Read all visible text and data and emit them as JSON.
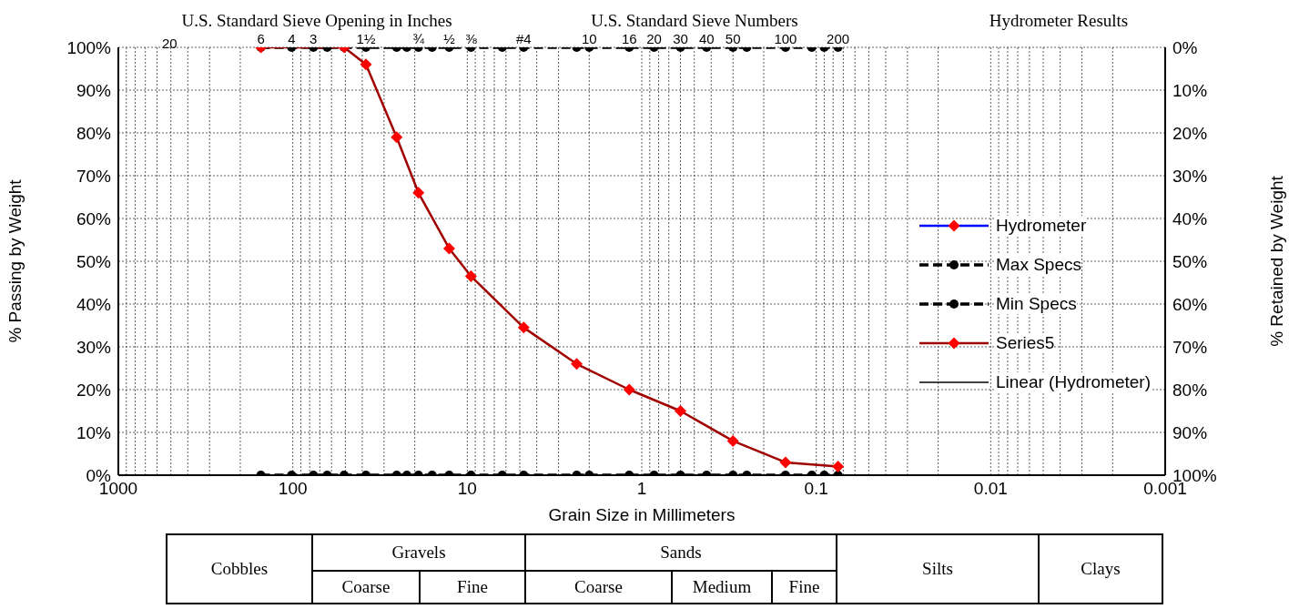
{
  "chart_data": {
    "type": "line",
    "xlabel": "Grain Size in Millimeters",
    "ylabel": "% Passing by Weight",
    "y2label": "% Retained by Weight",
    "log": "x",
    "grid": true,
    "legend": "right",
    "xlim": [
      1000,
      0.001
    ],
    "xticks": [
      1000,
      {
        "value": 900,
        "label": null
      },
      {
        "value": 800,
        "label": null
      },
      {
        "value": 700,
        "label": null
      },
      {
        "value": 600,
        "label": null
      },
      {
        "value": 500,
        "label": null
      },
      {
        "value": 400,
        "label": null
      },
      {
        "value": 300,
        "label": null
      },
      {
        "value": 200,
        "label": null
      },
      100,
      {
        "value": 90,
        "label": null
      },
      {
        "value": 80,
        "label": null
      },
      {
        "value": 70,
        "label": null
      },
      {
        "value": 60,
        "label": null
      },
      {
        "value": 50,
        "label": null
      },
      {
        "value": 40,
        "label": null
      },
      {
        "value": 30,
        "label": null
      },
      {
        "value": 20,
        "label": null
      },
      10,
      {
        "value": 9,
        "label": null
      },
      {
        "value": 8,
        "label": null
      },
      {
        "value": 7,
        "label": null
      },
      {
        "value": 6,
        "label": null
      },
      {
        "value": 5,
        "label": null
      },
      {
        "value": 4,
        "label": null
      },
      {
        "value": 3,
        "label": null
      },
      {
        "value": 2,
        "label": null
      },
      1,
      {
        "value": 0.9,
        "label": null
      },
      {
        "value": 0.8,
        "label": null
      },
      {
        "value": 0.7,
        "label": null
      },
      {
        "value": 0.6,
        "label": null
      },
      {
        "value": 0.5,
        "label": null
      },
      {
        "value": 0.4,
        "label": null
      },
      {
        "value": 0.3,
        "label": null
      },
      {
        "value": 0.2,
        "label": null
      },
      0.1,
      {
        "value": 0.09,
        "label": null
      },
      {
        "value": 0.08,
        "label": null
      },
      {
        "value": 0.07,
        "label": null
      },
      {
        "value": 0.06,
        "label": null
      },
      {
        "value": 0.05,
        "label": null
      },
      {
        "value": 0.04,
        "label": null
      },
      {
        "value": 0.03,
        "label": null
      },
      {
        "value": 0.02,
        "label": null
      },
      0.01,
      {
        "value": 0.009,
        "label": null
      },
      {
        "value": 0.008,
        "label": null
      },
      {
        "value": 0.007,
        "label": null
      },
      {
        "value": 0.006,
        "label": null
      },
      {
        "value": 0.005,
        "label": null
      },
      {
        "value": 0.004,
        "label": null
      },
      {
        "value": 0.003,
        "label": null
      },
      {
        "value": 0.002,
        "label": null
      },
      0.001
    ],
    "annotations": [
      "U.S. Standard Sieve Opening in Inches",
      "U.S. Standard Sieve Numbers",
      "Hydrometer Results",
      "Cobbles",
      "Gravels",
      "Coarse",
      "Fine",
      "Sands",
      "Coarse",
      "Medium",
      "Fine",
      "Silts",
      "Clays",
      "20",
      {
        "text": "6",
        "x": 152.4
      },
      {
        "text": "4",
        "x": 101.6
      },
      {
        "text": "3",
        "x": 76.2
      },
      {
        "text": "1½",
        "x": 38.1
      },
      {
        "text": "¾",
        "x": 19.05
      },
      {
        "text": "½",
        "x": 12.7
      },
      {
        "text": "⅜",
        "x": 9.525
      },
      {
        "text": "#4",
        "x": 4.75
      },
      {
        "text": "10",
        "x": 2
      },
      {
        "text": "16",
        "x": 1.18
      },
      {
        "text": "20",
        "x": 0.85
      },
      {
        "text": "30",
        "x": 0.6
      },
      {
        "text": "40",
        "x": 0.425
      },
      {
        "text": "50",
        "x": 0.3
      },
      {
        "text": "100",
        "x": 0.15
      },
      {
        "text": "200",
        "x": 0.075
      }
    ],
    "ylim": [
      0,
      100
    ],
    "yticks": [
      {
        "value": 0,
        "label": "0%"
      },
      {
        "value": 10,
        "label": "10%"
      },
      {
        "value": 20,
        "label": "20%"
      },
      {
        "value": 30,
        "label": "30%"
      },
      {
        "value": 40,
        "label": "40%"
      },
      {
        "value": 50,
        "label": "50%"
      },
      {
        "value": 60,
        "label": "60%"
      },
      {
        "value": 70,
        "label": "70%"
      },
      {
        "value": 80,
        "label": "80%"
      },
      {
        "value": 90,
        "label": "90%"
      },
      {
        "value": 100,
        "label": "100%"
      }
    ],
    "y2lim": [
      100,
      0
    ],
    "y2ticks": [
      {
        "value": 0,
        "label": "0%"
      },
      {
        "value": 10,
        "label": "10%"
      },
      {
        "value": 20,
        "label": "20%"
      },
      {
        "value": 30,
        "label": "30%"
      },
      {
        "value": 40,
        "label": "40%"
      },
      {
        "value": 50,
        "label": "50%"
      },
      {
        "value": 60,
        "label": "60%"
      },
      {
        "value": 70,
        "label": "70%"
      },
      {
        "value": 80,
        "label": "80%"
      },
      {
        "value": 90,
        "label": "90%"
      },
      {
        "value": 100,
        "label": "100%"
      }
    ],
    "series": [
      {
        "name": "Hydrometer",
        "color": "#0000ff",
        "marker": "diamond",
        "line_style": "solid"
      },
      {
        "name": "Max Specs",
        "color": "#000000",
        "marker": "circle",
        "line_style": "dashed",
        "x": [
          152.4,
          101.6,
          76.2,
          63.5,
          50.8,
          38.1,
          25.4,
          22.2,
          19.05,
          15.9,
          12.7,
          9.525,
          6.3,
          4.75,
          2.36,
          2,
          1.18,
          0.85,
          0.6,
          0.425,
          0.3,
          0.25,
          0.15,
          0.106,
          0.09,
          0.075
        ],
        "values": [
          100,
          100,
          100,
          100,
          100,
          100,
          100,
          100,
          100,
          100,
          100,
          100,
          100,
          100,
          100,
          100,
          100,
          100,
          100,
          100,
          100,
          100,
          100,
          100,
          100,
          100
        ]
      },
      {
        "name": "Min Specs",
        "color": "#000000",
        "marker": "circle",
        "line_style": "dashed",
        "x": [
          152.4,
          101.6,
          76.2,
          63.5,
          50.8,
          38.1,
          25.4,
          22.2,
          19.05,
          15.9,
          12.7,
          9.525,
          6.3,
          4.75,
          2.36,
          2,
          1.18,
          0.85,
          0.6,
          0.425,
          0.3,
          0.25,
          0.15,
          0.106,
          0.09,
          0.075
        ],
        "values": [
          0,
          0,
          0,
          0,
          0,
          0,
          0,
          0,
          0,
          0,
          0,
          0,
          0,
          0,
          0,
          0,
          0,
          0,
          0,
          0,
          0,
          0,
          0,
          0,
          0,
          0
        ]
      },
      {
        "name": "Series5",
        "color": "#a00000",
        "marker": "diamond",
        "line_style": "solid",
        "x": [
          152.4,
          50.8,
          38.1,
          25.4,
          19.05,
          12.7,
          9.525,
          4.75,
          2.36,
          1.18,
          0.6,
          0.3,
          0.15,
          0.075
        ],
        "values": [
          100,
          100,
          96,
          79,
          66,
          53,
          46.5,
          34.5,
          26,
          20,
          15,
          8,
          3,
          2
        ]
      },
      {
        "name": "Linear (Hydrometer)",
        "color": "#000000",
        "marker": "none",
        "line_style": "solid"
      }
    ]
  }
}
